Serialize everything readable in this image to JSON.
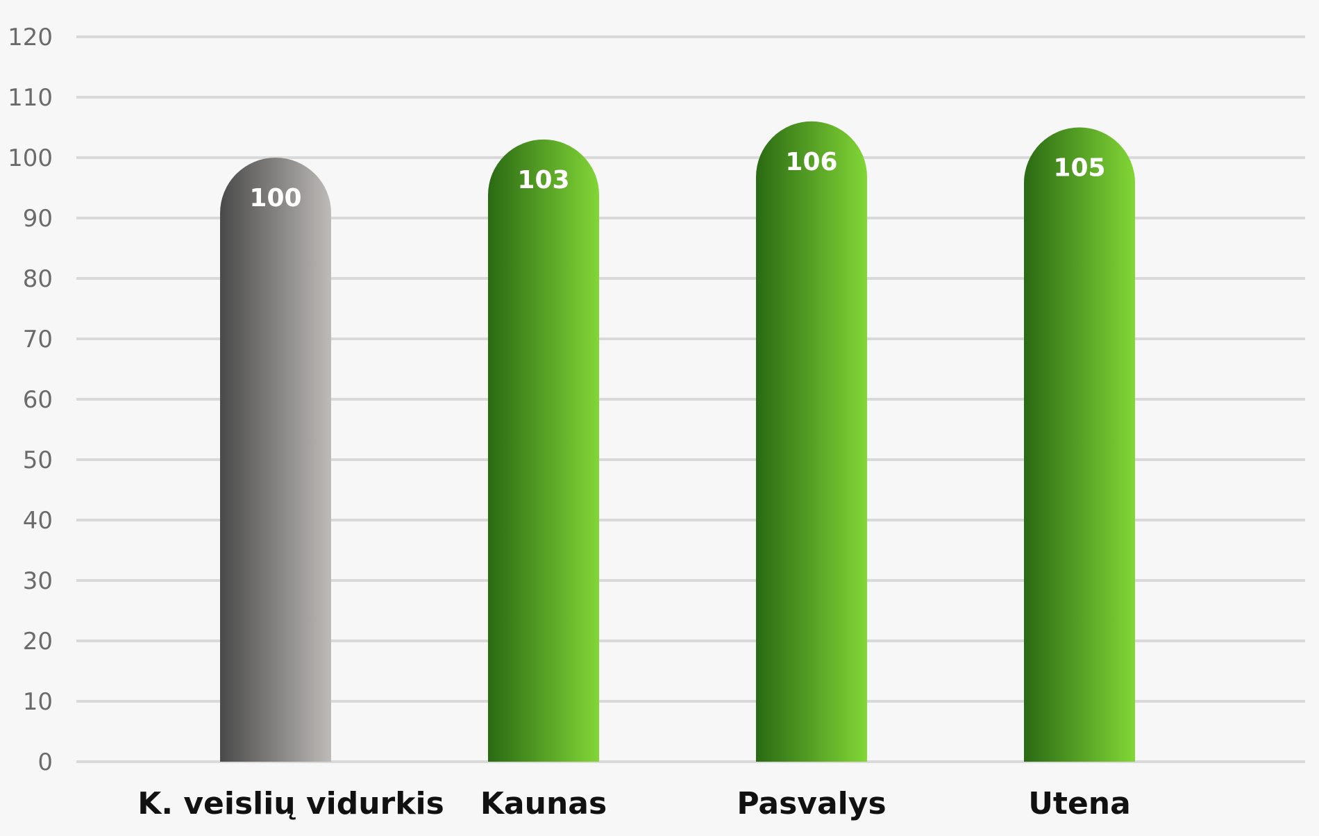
{
  "chart_data": {
    "type": "bar",
    "title": "",
    "xlabel": "",
    "ylabel": "",
    "categories": [
      "K. veislių vidurkis",
      "Kaunas",
      "Pasvalys",
      "Utena"
    ],
    "values": [
      100,
      103,
      106,
      105
    ],
    "ylim": [
      0,
      120
    ],
    "yticks": [
      0,
      10,
      20,
      30,
      40,
      50,
      60,
      70,
      80,
      90,
      100,
      110,
      120
    ],
    "grid": true,
    "legend": "none",
    "data_labels": true,
    "bar_colors": [
      {
        "from": "#4a4a4a",
        "to": "#bdbab7"
      },
      {
        "from": "#2a6a14",
        "to": "#82d636"
      },
      {
        "from": "#2a6a14",
        "to": "#82d636"
      },
      {
        "from": "#2a6a14",
        "to": "#82d636"
      }
    ]
  }
}
